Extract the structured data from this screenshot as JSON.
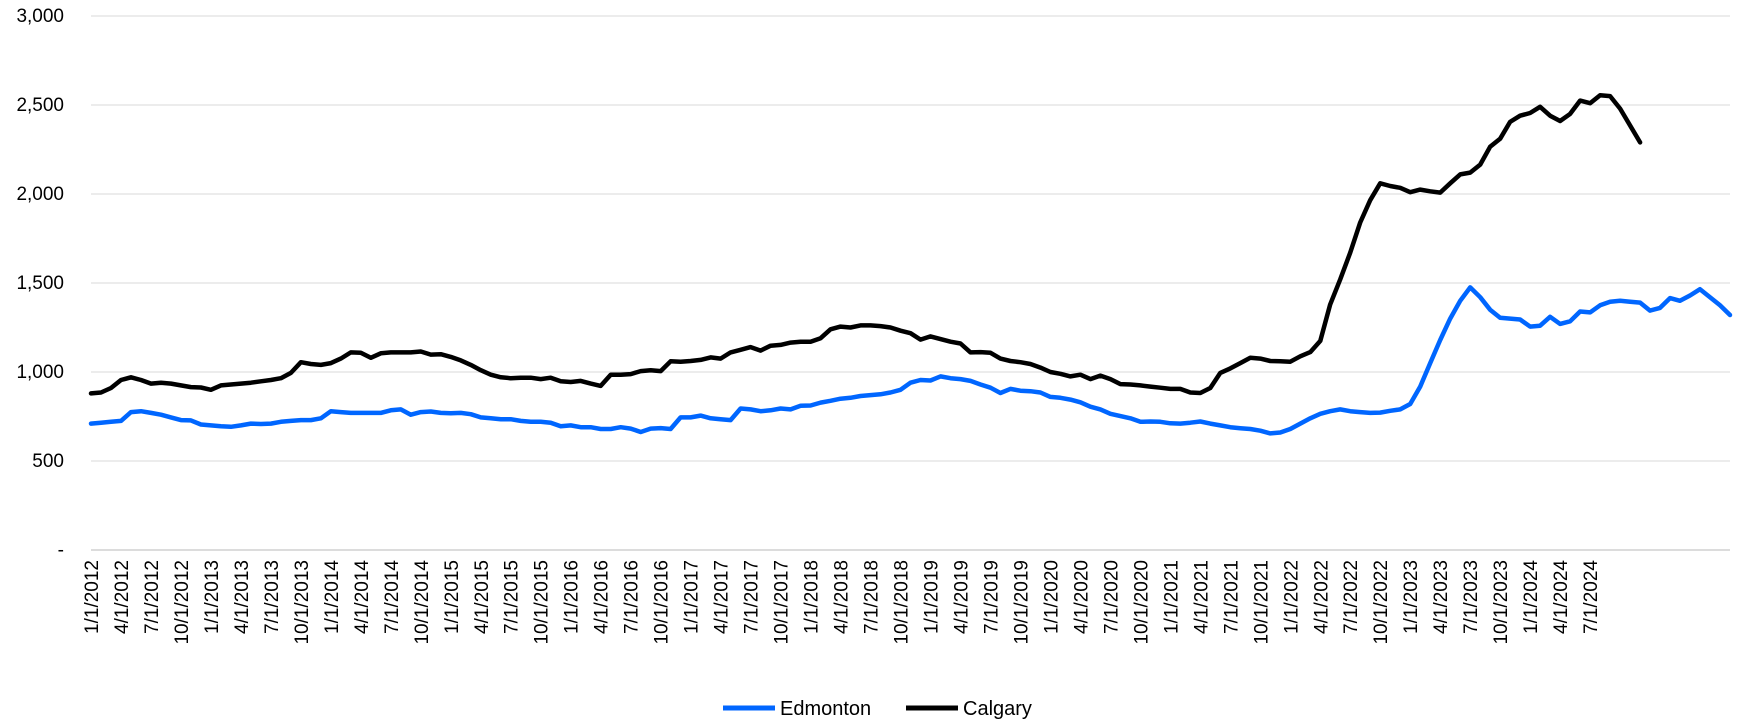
{
  "chart_data": {
    "type": "line",
    "title": "",
    "xlabel": "",
    "ylabel": "",
    "ylim": [
      0,
      3000
    ],
    "y_ticks": [
      {
        "value": 0,
        "label": "-"
      },
      {
        "value": 500,
        "label": "500"
      },
      {
        "value": 1000,
        "label": "1,000"
      },
      {
        "value": 1500,
        "label": "1,500"
      },
      {
        "value": 2000,
        "label": "2,000"
      },
      {
        "value": 2500,
        "label": "2,500"
      },
      {
        "value": 3000,
        "label": "3,000"
      }
    ],
    "x_start": "1/1/2012",
    "x_end": "9/1/2024",
    "x_ticks": [
      "1/1/2012",
      "4/1/2012",
      "7/1/2012",
      "10/1/2012",
      "1/1/2013",
      "4/1/2013",
      "7/1/2013",
      "10/1/2013",
      "1/1/2014",
      "4/1/2014",
      "7/1/2014",
      "10/1/2014",
      "1/1/2015",
      "4/1/2015",
      "7/1/2015",
      "10/1/2015",
      "1/1/2016",
      "4/1/2016",
      "7/1/2016",
      "10/1/2016",
      "1/1/2017",
      "4/1/2017",
      "7/1/2017",
      "10/1/2017",
      "1/1/2018",
      "4/1/2018",
      "7/1/2018",
      "10/1/2018",
      "1/1/2019",
      "4/1/2019",
      "7/1/2019",
      "10/1/2019",
      "1/1/2020",
      "4/1/2020",
      "7/1/2020",
      "10/1/2020",
      "1/1/2021",
      "4/1/2021",
      "7/1/2021",
      "10/1/2021",
      "1/1/2022",
      "4/1/2022",
      "7/1/2022",
      "10/1/2022",
      "1/1/2023",
      "4/1/2023",
      "7/1/2023",
      "10/1/2023",
      "1/1/2024",
      "4/1/2024",
      "7/1/2024"
    ],
    "grid": true,
    "legend_position": "bottom-center",
    "series": [
      {
        "name": "Edmonton",
        "color": "#0066ff",
        "values": [
          710,
          715,
          720,
          725,
          775,
          780,
          770,
          760,
          745,
          730,
          728,
          705,
          700,
          695,
          692,
          700,
          710,
          708,
          710,
          720,
          725,
          730,
          730,
          740,
          780,
          775,
          770,
          770,
          770,
          770,
          785,
          790,
          760,
          775,
          778,
          770,
          768,
          770,
          763,
          745,
          740,
          735,
          735,
          725,
          720,
          720,
          715,
          695,
          700,
          690,
          690,
          680,
          680,
          690,
          682,
          663,
          682,
          685,
          680,
          745,
          745,
          755,
          740,
          735,
          730,
          795,
          790,
          780,
          785,
          795,
          790,
          810,
          812,
          828,
          838,
          850,
          855,
          865,
          870,
          875,
          885,
          900,
          940,
          955,
          952,
          975,
          965,
          960,
          950,
          930,
          912,
          882,
          905,
          895,
          892,
          885,
          860,
          855,
          845,
          830,
          805,
          790,
          765,
          752,
          740,
          720,
          722,
          720,
          712,
          710,
          715,
          722,
          710,
          700,
          690,
          684,
          680,
          670,
          655,
          660,
          680,
          710,
          740,
          765,
          780,
          790,
          780,
          775,
          770,
          772,
          782,
          790,
          820,
          918,
          1050,
          1180,
          1300,
          1400,
          1475,
          1420,
          1350,
          1305,
          1300,
          1295,
          1255,
          1260,
          1310,
          1270,
          1285,
          1340,
          1335,
          1375,
          1395,
          1400,
          1395,
          1390,
          1345,
          1360,
          1415,
          1400,
          1430,
          1465,
          1420,
          1375,
          1320
        ]
      },
      {
        "name": "Calgary",
        "color": "#000000",
        "values": [
          880,
          885,
          910,
          955,
          970,
          955,
          935,
          940,
          935,
          925,
          915,
          913,
          900,
          925,
          930,
          935,
          940,
          948,
          955,
          965,
          995,
          1055,
          1045,
          1040,
          1050,
          1075,
          1110,
          1108,
          1080,
          1105,
          1110,
          1110,
          1110,
          1115,
          1098,
          1100,
          1085,
          1065,
          1040,
          1010,
          985,
          970,
          965,
          968,
          968,
          960,
          968,
          948,
          944,
          950,
          935,
          922,
          985,
          985,
          988,
          1005,
          1010,
          1005,
          1060,
          1058,
          1062,
          1068,
          1082,
          1075,
          1110,
          1125,
          1140,
          1120,
          1148,
          1152,
          1165,
          1170,
          1170,
          1190,
          1240,
          1255,
          1250,
          1262,
          1262,
          1258,
          1250,
          1232,
          1218,
          1182,
          1200,
          1185,
          1170,
          1160,
          1110,
          1112,
          1108,
          1075,
          1062,
          1055,
          1045,
          1025,
          1000,
          990,
          975,
          985,
          960,
          980,
          960,
          932,
          930,
          925,
          918,
          912,
          905,
          905,
          885,
          882,
          910,
          995,
          1020,
          1050,
          1080,
          1075,
          1062,
          1060,
          1058,
          1088,
          1112,
          1175,
          1380,
          1520,
          1670,
          1840,
          1965,
          2060,
          2045,
          2035,
          2010,
          2025,
          2015,
          2008,
          2060,
          2110,
          2120,
          2165,
          2265,
          2310,
          2405,
          2440,
          2455,
          2490,
          2440,
          2410,
          2450,
          2525,
          2510,
          2555,
          2550,
          2480,
          2385,
          2290
        ]
      }
    ]
  }
}
